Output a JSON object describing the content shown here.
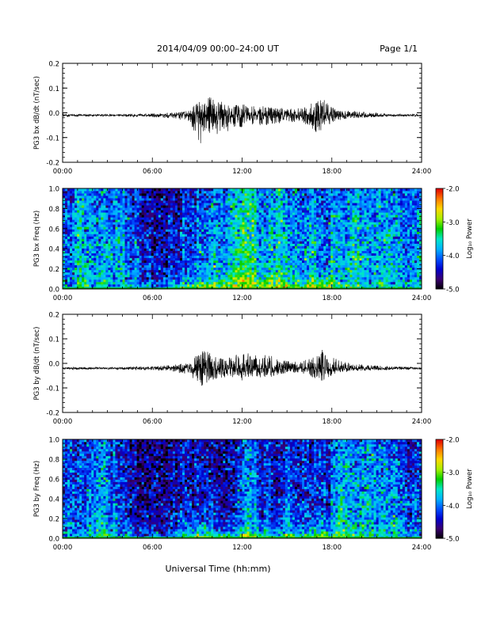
{
  "header": {
    "title": "2014/04/09   00:00–24:00 UT",
    "page": "Page 1/1"
  },
  "xaxis": {
    "label": "Universal Time (hh:mm)",
    "tick_labels": [
      "00:00",
      "06:00",
      "12:00",
      "18:00",
      "24:00"
    ],
    "tick_hours": [
      0,
      6,
      12,
      18,
      24
    ],
    "range_hours": [
      0,
      24
    ]
  },
  "colorbar": {
    "label": "Log₁₀ Power",
    "tick_labels": [
      "-2.0",
      "-3.0",
      "-4.0",
      "-5.0"
    ],
    "tick_values": [
      -2,
      -3,
      -4,
      -5
    ],
    "range": [
      -5,
      -2
    ],
    "colormap": [
      "#000000",
      "#3a0071",
      "#0000d0",
      "#0050ff",
      "#00b4ff",
      "#00e8c8",
      "#00d000",
      "#a8f000",
      "#ffd800",
      "#ff7800",
      "#e00000"
    ]
  },
  "chart_data": [
    {
      "type": "line",
      "ylabel": "PG3 bx dB/dt (nT/sec)",
      "ylim": [
        -0.2,
        0.2
      ],
      "yticks": [
        -0.2,
        -0.1,
        0.0,
        0.1,
        0.2
      ],
      "ytick_labels": [
        "-0.2",
        "-0.1",
        "0.0",
        "0.1",
        "0.2"
      ],
      "baseline": -0.01,
      "series": [
        {
          "x_hours": [
            0,
            3,
            6,
            7.5,
            8.5,
            9.0,
            9.3,
            9.6,
            10.0,
            10.5,
            11.0,
            11.5,
            12.0,
            13.0,
            14.0,
            15.0,
            16.0,
            16.5,
            17.0,
            17.3,
            17.6,
            18.0,
            18.5,
            19.0,
            20.0,
            21.0,
            22.0,
            24.0
          ],
          "y_max": [
            -0.005,
            -0.005,
            -0.003,
            0.0,
            0.01,
            0.05,
            0.06,
            0.085,
            0.055,
            0.045,
            0.045,
            0.04,
            0.035,
            0.025,
            0.03,
            0.015,
            0.02,
            0.035,
            0.045,
            0.055,
            0.05,
            0.025,
            0.01,
            0.01,
            0.005,
            0.0,
            -0.005,
            -0.005
          ],
          "y_min": [
            -0.015,
            -0.015,
            -0.017,
            -0.025,
            -0.04,
            -0.1,
            -0.15,
            -0.11,
            -0.08,
            -0.09,
            -0.08,
            -0.07,
            -0.06,
            -0.05,
            -0.05,
            -0.035,
            -0.04,
            -0.06,
            -0.08,
            -0.07,
            -0.06,
            -0.04,
            -0.03,
            -0.025,
            -0.02,
            -0.017,
            -0.015,
            -0.015
          ]
        }
      ]
    },
    {
      "type": "heatmap",
      "ylabel": "PG3 bx Freq (Hz)",
      "ylim": [
        0.0,
        1.0
      ],
      "yticks": [
        0.0,
        0.2,
        0.4,
        0.6,
        0.8,
        1.0
      ],
      "ytick_labels": [
        "0.0",
        "0.2",
        "0.4",
        "0.6",
        "0.8",
        "1.0"
      ],
      "value_range": [
        -5,
        -2
      ],
      "hourly_mean_log_power": [
        -3.8,
        -3.7,
        -3.6,
        -3.7,
        -3.9,
        -4.2,
        -4.4,
        -4.3,
        -4.0,
        -3.9,
        -3.8,
        -3.6,
        -3.4,
        -3.7,
        -3.8,
        -3.8,
        -3.9,
        -4.0,
        -3.7,
        -3.6,
        -3.5,
        -3.6,
        -3.7,
        -3.8
      ],
      "low_freq_peak_log_power": [
        -3.6,
        -3.5,
        -3.4,
        -3.5,
        -3.6,
        -3.8,
        -3.8,
        -3.4,
        -2.8,
        -2.5,
        -2.7,
        -2.8,
        -2.6,
        -2.6,
        -2.7,
        -2.8,
        -2.7,
        -2.6,
        -3.0,
        -3.2,
        -3.3,
        -3.4,
        -3.5,
        -3.5
      ]
    },
    {
      "type": "line",
      "ylabel": "PG3 by dB/dt (nT/sec)",
      "ylim": [
        -0.2,
        0.2
      ],
      "yticks": [
        -0.2,
        -0.1,
        0.0,
        0.1,
        0.2
      ],
      "ytick_labels": [
        "-0.2",
        "-0.1",
        "0.0",
        "0.1",
        "0.2"
      ],
      "baseline": -0.02,
      "series": [
        {
          "x_hours": [
            0,
            3,
            6,
            7.5,
            8.5,
            9.0,
            9.5,
            10.0,
            10.5,
            11.0,
            11.5,
            12.0,
            13.0,
            14.0,
            15.0,
            16.0,
            16.5,
            17.0,
            17.3,
            17.6,
            18.0,
            18.5,
            19.0,
            20.0,
            22.0,
            24.0
          ],
          "y_max": [
            -0.015,
            -0.015,
            -0.013,
            -0.005,
            0.005,
            0.04,
            0.06,
            0.04,
            0.02,
            0.025,
            0.035,
            0.045,
            0.04,
            0.03,
            0.01,
            0.01,
            0.02,
            0.04,
            0.06,
            0.1,
            0.03,
            0.01,
            0.005,
            -0.005,
            -0.012,
            -0.015
          ],
          "y_min": [
            -0.025,
            -0.025,
            -0.027,
            -0.035,
            -0.05,
            -0.08,
            -0.11,
            -0.08,
            -0.06,
            -0.06,
            -0.06,
            -0.07,
            -0.06,
            -0.055,
            -0.04,
            -0.04,
            -0.05,
            -0.07,
            -0.08,
            -0.07,
            -0.05,
            -0.04,
            -0.035,
            -0.03,
            -0.027,
            -0.025
          ]
        }
      ]
    },
    {
      "type": "heatmap",
      "ylabel": "PG3 by Freq (Hz)",
      "ylim": [
        0.0,
        1.0
      ],
      "yticks": [
        0.0,
        0.2,
        0.4,
        0.6,
        0.8,
        1.0
      ],
      "ytick_labels": [
        "0.0",
        "0.2",
        "0.4",
        "0.6",
        "0.8",
        "1.0"
      ],
      "value_range": [
        -5,
        -2
      ],
      "hourly_mean_log_power": [
        -4.0,
        -4.0,
        -4.0,
        -4.1,
        -4.3,
        -4.5,
        -4.6,
        -4.4,
        -4.2,
        -4.2,
        -4.2,
        -4.0,
        -3.9,
        -4.2,
        -4.2,
        -4.1,
        -4.1,
        -4.2,
        -3.9,
        -3.9,
        -3.8,
        -3.9,
        -4.0,
        -4.1
      ],
      "low_freq_peak_log_power": [
        -3.8,
        -3.7,
        -3.6,
        -3.7,
        -3.8,
        -4.0,
        -3.9,
        -3.6,
        -2.9,
        -2.6,
        -2.8,
        -2.9,
        -2.8,
        -3.0,
        -3.1,
        -3.1,
        -3.0,
        -2.8,
        -3.2,
        -3.4,
        -3.5,
        -3.6,
        -3.7,
        -3.7
      ]
    }
  ]
}
